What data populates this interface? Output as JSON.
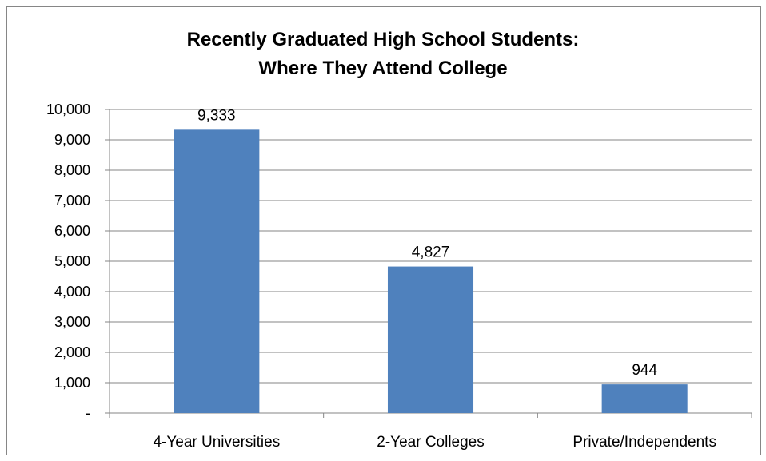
{
  "chart_data": {
    "type": "bar",
    "title_line1": "Recently Graduated High School Students:",
    "title_line2": "Where They Attend College",
    "categories": [
      "4-Year Universities",
      "2-Year Colleges",
      "Private/Independents"
    ],
    "values": [
      9333,
      4827,
      944
    ],
    "data_labels": [
      "9,333",
      "4,827",
      "944"
    ],
    "yticks": [
      0,
      1000,
      2000,
      3000,
      4000,
      5000,
      6000,
      7000,
      8000,
      9000,
      10000
    ],
    "ytick_labels": [
      "-",
      "1,000",
      "2,000",
      "3,000",
      "4,000",
      "5,000",
      "6,000",
      "7,000",
      "8,000",
      "9,000",
      "10,000"
    ],
    "ylim": [
      0,
      10000
    ],
    "grid": true,
    "legend": "none",
    "bar_color": "#4F81BD",
    "grid_color": "#868686"
  }
}
